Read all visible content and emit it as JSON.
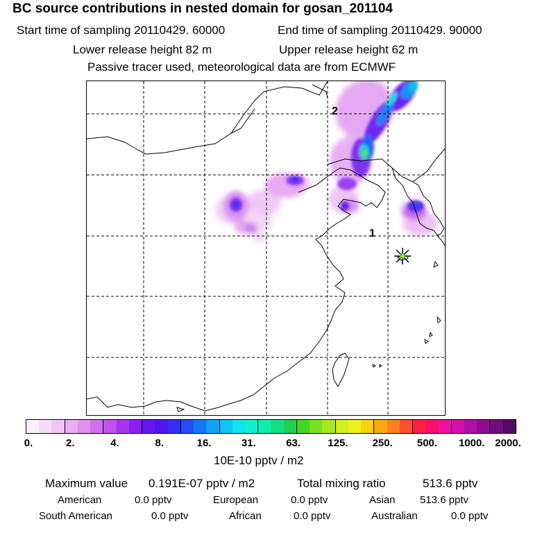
{
  "header": {
    "title": "BC  source contributions in nested domain for gosan_201104",
    "start_time": "Start time of sampling 20110429. 60000",
    "end_time": "End time of sampling 20110429. 90000",
    "lower_release": "Lower release height   82 m",
    "upper_release": "Upper release height   62 m",
    "tracer_note": "Passive tracer used, meteorological data are from ECMWF"
  },
  "map": {
    "labels": {
      "one": "1",
      "two": "2"
    },
    "station_marker": "star-icon"
  },
  "colorbar": {
    "colors": [
      "#fbf0fb",
      "#f6dcf6",
      "#f1c6f4",
      "#ecadf2",
      "#e38ef0",
      "#d470f0",
      "#c251f0",
      "#a834ee",
      "#8a20ee",
      "#6a16ef",
      "#4f16f2",
      "#3530f4",
      "#2050f5",
      "#1478f5",
      "#10a2f5",
      "#10c4f5",
      "#10e4ee",
      "#10f0d0",
      "#10ecac",
      "#10e080",
      "#20d050",
      "#40d820",
      "#7ae020",
      "#a8e820",
      "#d2f020",
      "#f0f020",
      "#fcd010",
      "#fca810",
      "#fc8020",
      "#fc5030",
      "#fc2040",
      "#f81070",
      "#f010a0",
      "#d010b0",
      "#b010a8",
      "#900c94",
      "#700c80",
      "#500a60"
    ],
    "divider_every": 3,
    "tick_labels": [
      "0.",
      "2.",
      "4.",
      "8.",
      "16.",
      "31.",
      "63.",
      "125.",
      "250.",
      "500.",
      "1000.",
      "2000."
    ],
    "units": "10E-10 pptv / m2"
  },
  "stats": {
    "max_label": "Maximum value",
    "max_value": "0.191E-07 pptv / m2",
    "total_label": "Total mixing ratio",
    "total_value": "513.6 pptv",
    "regions": [
      {
        "name": "American",
        "value": "0.0 pptv"
      },
      {
        "name": "European",
        "value": "0.0 pptv"
      },
      {
        "name": "Asian",
        "value": "513.6 pptv"
      },
      {
        "name": "South American",
        "value": "0.0 pptv"
      },
      {
        "name": "African",
        "value": "0.0 pptv"
      },
      {
        "name": "Australian",
        "value": "0.0 pptv"
      }
    ]
  }
}
